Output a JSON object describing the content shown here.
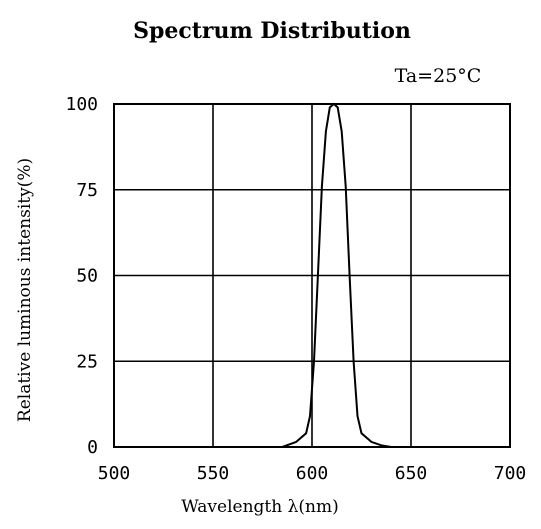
{
  "chart_data": {
    "type": "line",
    "title": "Spectrum Distribution",
    "annotation": "Ta=25°C",
    "xlabel": "Wavelength λ(nm)",
    "ylabel": "Relative luminous intensity(%)",
    "xlim": [
      500,
      700
    ],
    "ylim": [
      0,
      100
    ],
    "xticks": [
      "500",
      "550",
      "600",
      "650",
      "700"
    ],
    "yticks": [
      "0",
      "25",
      "50",
      "75",
      "100"
    ],
    "grid": true,
    "series": [
      {
        "x": [
          585,
          592,
          597,
          599,
          601,
          603,
          605,
          607,
          609,
          611,
          613,
          615,
          617,
          619,
          621,
          623,
          625,
          630,
          635,
          640
        ],
        "y": [
          0,
          1.5,
          4,
          9,
          25,
          50,
          76,
          92,
          99,
          100,
          99,
          92,
          76,
          50,
          25,
          9,
          4,
          1.5,
          0.5,
          0
        ]
      }
    ]
  }
}
